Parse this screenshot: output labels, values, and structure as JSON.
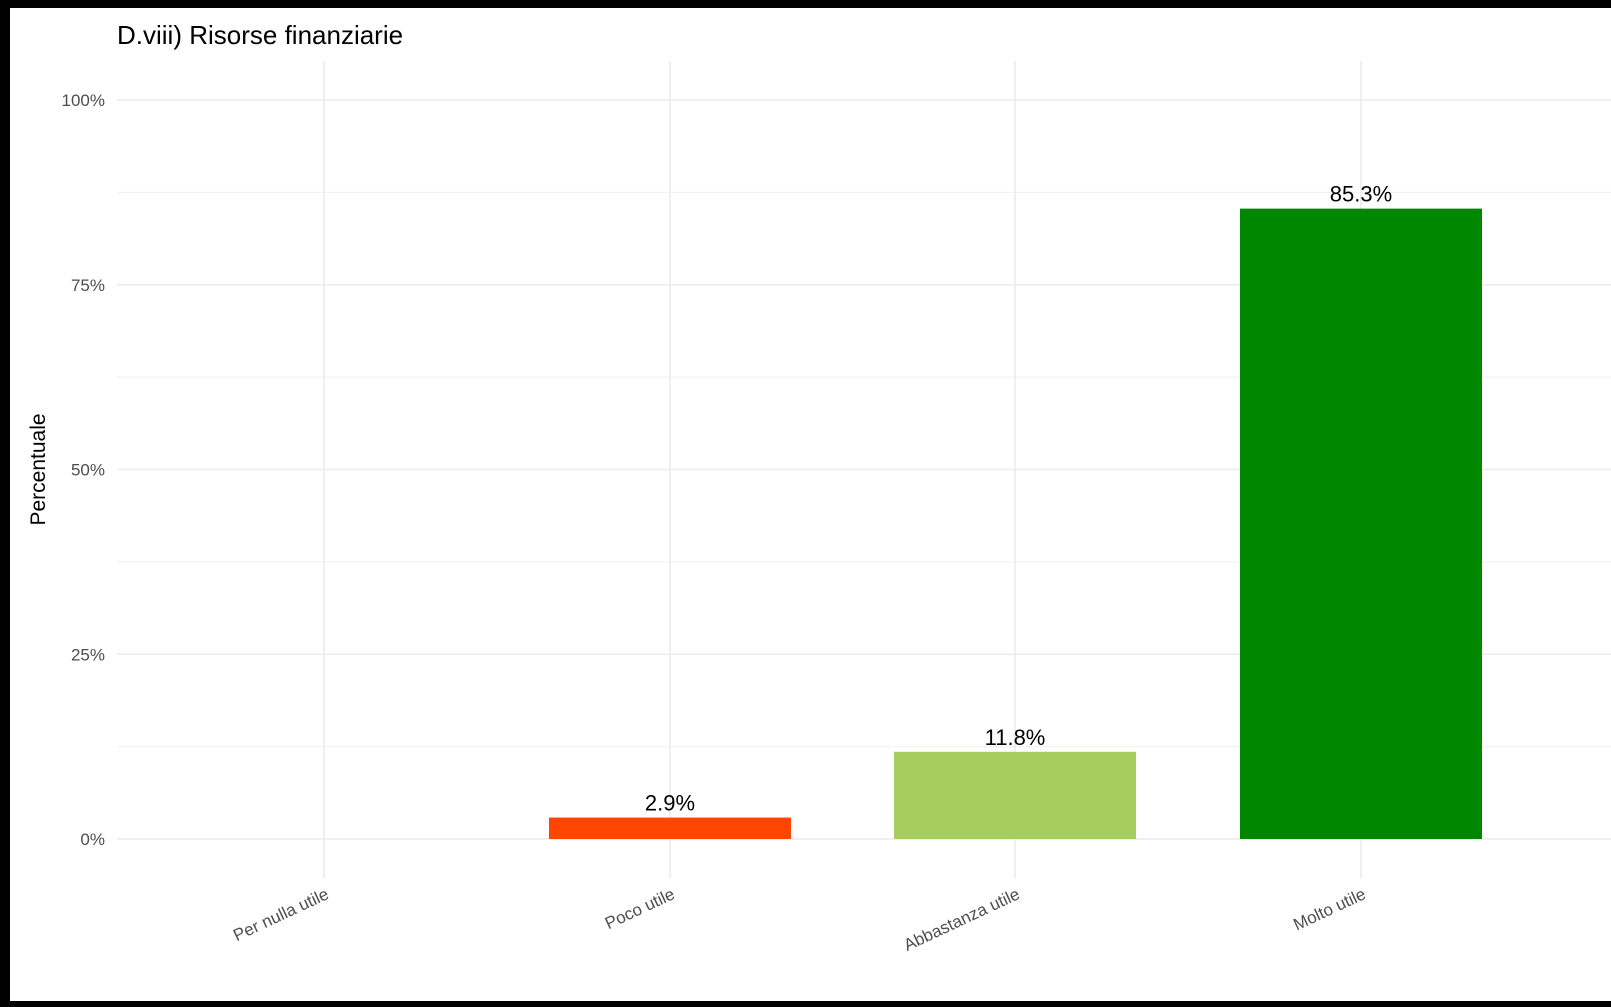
{
  "chart_data": {
    "type": "bar",
    "title": "D.viii) Risorse finanziarie",
    "xlabel": "",
    "ylabel": "Percentuale",
    "categories": [
      "Per nulla utile",
      "Poco utile",
      "Abbastanza utile",
      "Molto utile"
    ],
    "values": [
      0,
      2.9,
      11.8,
      85.3
    ],
    "data_labels": [
      "",
      "2.9%",
      "11.8%",
      "85.3%"
    ],
    "colors": [
      "#e41a1c",
      "#ff4500",
      "#a6ce5e",
      "#008700"
    ],
    "ylim": [
      0,
      100
    ],
    "yticks": [
      0,
      25,
      50,
      75,
      100
    ],
    "ytick_labels": [
      "0%",
      "25%",
      "50%",
      "75%",
      "100%"
    ],
    "grid": true,
    "legend": "none"
  }
}
